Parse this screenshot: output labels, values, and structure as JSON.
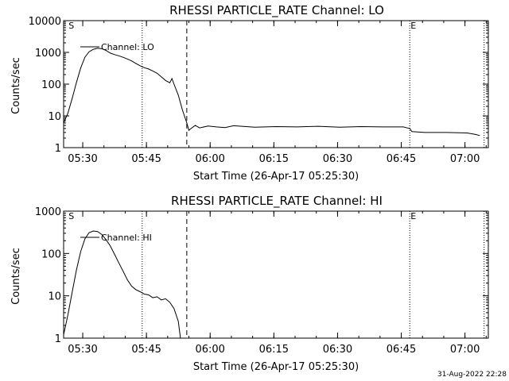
{
  "footer_timestamp": "31-Aug-2022 22:28",
  "colors": {
    "background": "#ffffff",
    "foreground": "#000000"
  },
  "chart_data": [
    {
      "type": "line",
      "title": "RHESSI PARTICLE_RATE Channel: LO",
      "xlabel": "Start Time (26-Apr-17 05:25:30)",
      "ylabel": "Counts/sec",
      "yscale": "log",
      "ylim": [
        1,
        10000
      ],
      "xlim_minutes": [
        0,
        100
      ],
      "x_tick_labels": [
        "05:30",
        "05:45",
        "06:00",
        "06:15",
        "06:30",
        "06:45",
        "07:00"
      ],
      "x_tick_minutes": [
        4.5,
        19.5,
        34.5,
        49.5,
        64.5,
        79.5,
        94.5
      ],
      "y_tick_labels": [
        "1",
        "10",
        "100",
        "1000",
        "10000"
      ],
      "y_tick_values": [
        1,
        10,
        100,
        1000,
        10000
      ],
      "legend": "Channel: LO",
      "legend_position": "top-left",
      "markers": [
        {
          "label": "S",
          "minute": 0.8,
          "style": "none"
        },
        {
          "minute": 18.5,
          "style": "dotted"
        },
        {
          "minute": 29.0,
          "style": "dashed"
        },
        {
          "label": "E",
          "minute": 81.5,
          "style": "dotted"
        },
        {
          "minute": 99.0,
          "style": "dotted"
        }
      ],
      "series": [
        {
          "name": "Channel: LO",
          "x": [
            0,
            1,
            2,
            3,
            4,
            5,
            6,
            7,
            8,
            9,
            10,
            11,
            12,
            13,
            14,
            15,
            16,
            17,
            18,
            19,
            20,
            21,
            22,
            23,
            24,
            25,
            25.5,
            26,
            27,
            28,
            29,
            29.5,
            30,
            31,
            32,
            34,
            36,
            38,
            40,
            45,
            50,
            55,
            60,
            65,
            70,
            75,
            80,
            81.5,
            82,
            85,
            90,
            95,
            97,
            98
          ],
          "y": [
            6,
            12,
            35,
            110,
            320,
            700,
            1050,
            1250,
            1350,
            1300,
            1150,
            950,
            850,
            780,
            700,
            620,
            540,
            450,
            380,
            330,
            300,
            260,
            220,
            170,
            130,
            110,
            150,
            100,
            45,
            15,
            6,
            3.5,
            4,
            5,
            4.2,
            4.8,
            4.5,
            4.3,
            4.9,
            4.4,
            4.6,
            4.5,
            4.7,
            4.4,
            4.6,
            4.5,
            4.5,
            4,
            3.2,
            3.0,
            3.0,
            2.9,
            2.6,
            2.4
          ]
        }
      ]
    },
    {
      "type": "line",
      "title": "RHESSI PARTICLE_RATE Channel: HI",
      "xlabel": "Start Time (26-Apr-17 05:25:30)",
      "ylabel": "Counts/sec",
      "yscale": "log",
      "ylim": [
        1,
        1000
      ],
      "xlim_minutes": [
        0,
        100
      ],
      "x_tick_labels": [
        "05:30",
        "05:45",
        "06:00",
        "06:15",
        "06:30",
        "06:45",
        "07:00"
      ],
      "x_tick_minutes": [
        4.5,
        19.5,
        34.5,
        49.5,
        64.5,
        79.5,
        94.5
      ],
      "y_tick_labels": [
        "1",
        "10",
        "100",
        "1000"
      ],
      "y_tick_values": [
        1,
        10,
        100,
        1000
      ],
      "legend": "Channel: HI",
      "legend_position": "top-left",
      "markers": [
        {
          "label": "S",
          "minute": 0.8,
          "style": "none"
        },
        {
          "minute": 18.5,
          "style": "dotted"
        },
        {
          "minute": 29.0,
          "style": "dashed"
        },
        {
          "label": "E",
          "minute": 81.5,
          "style": "dotted"
        },
        {
          "minute": 99.0,
          "style": "dotted"
        }
      ],
      "series": [
        {
          "name": "Channel: HI",
          "x": [
            0,
            1,
            2,
            3,
            4,
            5,
            6,
            7,
            8,
            9,
            10,
            11,
            12,
            13,
            14,
            15,
            16,
            17,
            18,
            19,
            20,
            21,
            22,
            23,
            24,
            25,
            26,
            27,
            27.5
          ],
          "y": [
            1.2,
            3.5,
            12,
            40,
            110,
            220,
            310,
            340,
            330,
            280,
            210,
            150,
            95,
            60,
            38,
            24,
            17,
            14,
            12.5,
            11,
            10.5,
            9,
            9.5,
            8,
            8.5,
            7,
            5,
            2.5,
            1
          ]
        }
      ]
    }
  ]
}
